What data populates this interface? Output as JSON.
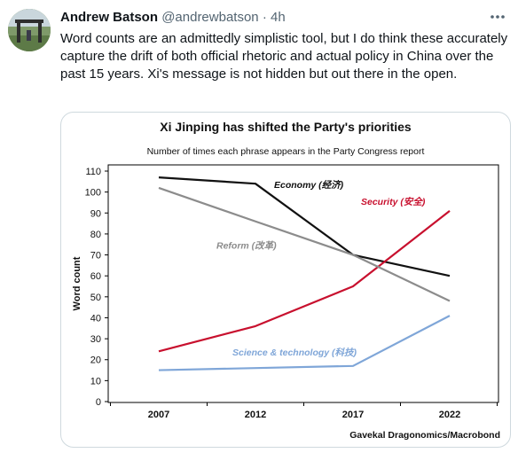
{
  "tweet": {
    "author_name": "Andrew Batson",
    "handle": "@andrewbatson",
    "separator": "·",
    "time": "4h",
    "text": "Word counts are an admittedly simplistic tool, but I do think these accurately capture the drift of both official rhetoric and actual policy in China over the past 15 years. Xi's message is not hidden but out there in the open.",
    "more_icon": "ellipsis-icon"
  },
  "chart_data": {
    "type": "line",
    "title": "Xi Jinping has shifted the Party's priorities",
    "subtitle": "Number of times each phrase appears in the Party Congress report",
    "xlabel": "",
    "ylabel": "Word count",
    "source": "Gavekal Dragonomics/Macrobond",
    "x": [
      "2007",
      "2012",
      "2017",
      "2022"
    ],
    "yticks": [
      0,
      10,
      20,
      30,
      40,
      50,
      60,
      70,
      80,
      90,
      100,
      110
    ],
    "ylim": [
      0,
      110
    ],
    "grid": false,
    "series": [
      {
        "name": "Economy (经济)",
        "color": "#111111",
        "values": [
          107,
          104,
          70,
          60
        ]
      },
      {
        "name": "Security (安全)",
        "color": "#c8102e",
        "values": [
          24,
          36,
          55,
          91
        ]
      },
      {
        "name": "Reform (改革)",
        "color": "#8c8c8c",
        "values": [
          102,
          86,
          70,
          48
        ]
      },
      {
        "name": "Science & technology (科技)",
        "color": "#7fa6d8",
        "values": [
          15,
          16,
          17,
          41
        ]
      }
    ]
  }
}
